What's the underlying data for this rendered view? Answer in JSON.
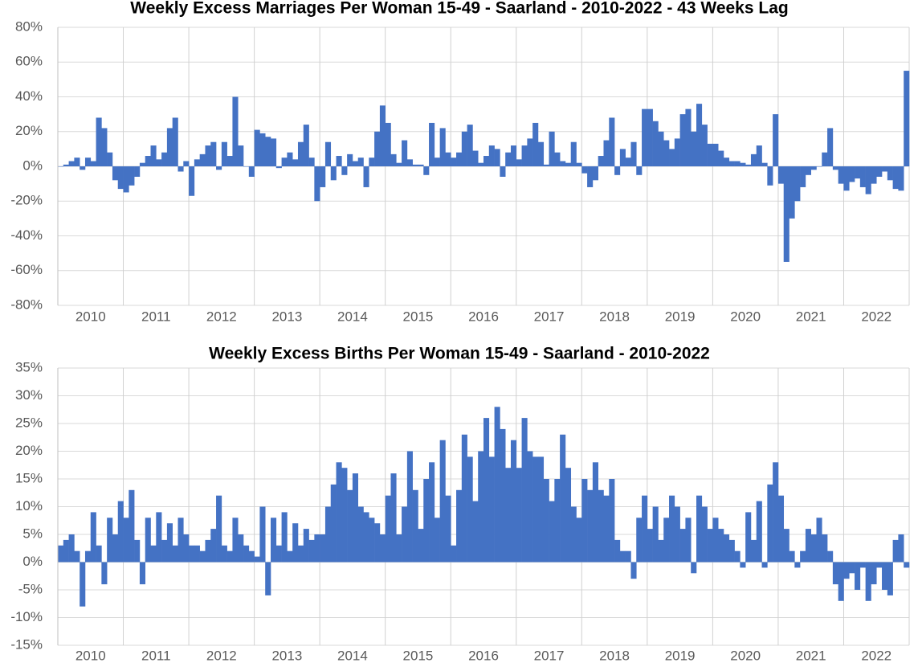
{
  "chart_data": [
    {
      "type": "bar",
      "title": "Weekly Excess Marriages Per Woman 15-49 - Saarland - 2010-2022 - 43 Weeks Lag",
      "color": "#4472c4",
      "grid": true,
      "categories": [
        "2010",
        "2011",
        "2012",
        "2013",
        "2014",
        "2015",
        "2016",
        "2017",
        "2018",
        "2019",
        "2020",
        "2021",
        "2022"
      ],
      "values": [
        [
          0,
          1,
          3,
          5,
          -2,
          5,
          3,
          28,
          22,
          8,
          -8,
          -13
        ],
        [
          -15,
          -11,
          -6,
          2,
          6,
          12,
          4,
          8,
          22,
          28,
          -3,
          3
        ],
        [
          -17,
          4,
          7,
          12,
          14,
          -2,
          14,
          6,
          40,
          12,
          0,
          -6
        ],
        [
          21,
          19,
          17,
          16,
          -1,
          5,
          8,
          4,
          14,
          24,
          5,
          -20
        ],
        [
          -12,
          14,
          -8,
          6,
          -5,
          7,
          3,
          5,
          -12,
          5,
          20,
          35
        ],
        [
          25,
          7,
          2,
          15,
          4,
          1,
          1,
          -5,
          25,
          5,
          22,
          8
        ],
        [
          5,
          8,
          20,
          24,
          9,
          2,
          6,
          12,
          10,
          -6,
          8,
          12
        ],
        [
          4,
          12,
          16,
          25,
          14,
          1,
          20,
          8,
          3,
          2,
          14,
          2
        ],
        [
          -4,
          -12,
          -8,
          6,
          15,
          28,
          -5,
          10,
          5,
          14,
          -5,
          33
        ],
        [
          33,
          26,
          20,
          15,
          10,
          16,
          30,
          33,
          20,
          36,
          24,
          13
        ],
        [
          13,
          9,
          5,
          3,
          3,
          2,
          1,
          7,
          12,
          2,
          -11,
          30
        ],
        [
          -10,
          -55,
          -30,
          -20,
          -12,
          -5,
          -2,
          0,
          8,
          22,
          -2,
          -10
        ],
        [
          -14,
          -9,
          -7,
          -12,
          -16,
          -10,
          -6,
          -3,
          -8,
          -13,
          -14,
          55
        ]
      ],
      "ylim": [
        -80,
        80
      ],
      "yticks": [
        {
          "value": -80,
          "label": "-80%"
        },
        {
          "value": -60,
          "label": "-60%"
        },
        {
          "value": -40,
          "label": "-40%"
        },
        {
          "value": -20,
          "label": "-20%"
        },
        {
          "value": 0,
          "label": "0%"
        },
        {
          "value": 20,
          "label": "20%"
        },
        {
          "value": 40,
          "label": "40%"
        },
        {
          "value": 60,
          "label": "60%"
        },
        {
          "value": 80,
          "label": "80%"
        }
      ]
    },
    {
      "type": "bar",
      "title": "Weekly Excess Births Per Woman 15-49 - Saarland - 2010-2022",
      "color": "#4472c4",
      "grid": true,
      "categories": [
        "2010",
        "2011",
        "2012",
        "2013",
        "2014",
        "2015",
        "2016",
        "2017",
        "2018",
        "2019",
        "2020",
        "2021",
        "2022"
      ],
      "values": [
        [
          3,
          4,
          5,
          2,
          -8,
          2,
          9,
          3,
          -4,
          8,
          5,
          11
        ],
        [
          8,
          13,
          4,
          -4,
          8,
          3,
          9,
          4,
          7,
          3,
          8,
          5
        ],
        [
          3,
          3,
          2,
          4,
          6,
          12,
          3,
          2,
          8,
          5,
          3,
          2
        ],
        [
          1,
          10,
          -6,
          8,
          3,
          9,
          2,
          7,
          3,
          6,
          4,
          5
        ],
        [
          5,
          10,
          14,
          18,
          17,
          13,
          16,
          10,
          9,
          8,
          7,
          5
        ],
        [
          12,
          16,
          5,
          10,
          20,
          13,
          6,
          15,
          18,
          8,
          22,
          12
        ],
        [
          3,
          13,
          23,
          19,
          11,
          20,
          26,
          19,
          28,
          24,
          17,
          22
        ],
        [
          17,
          26,
          20,
          19,
          19,
          15,
          11,
          15,
          23,
          17,
          10,
          8
        ],
        [
          15,
          13,
          18,
          13,
          12,
          15,
          4,
          2,
          2,
          -3,
          8,
          12
        ],
        [
          6,
          10,
          4,
          8,
          12,
          10,
          6,
          8,
          -2,
          12,
          10,
          6
        ],
        [
          8,
          6,
          5,
          4,
          2,
          -1,
          9,
          4,
          11,
          -1,
          14,
          18
        ],
        [
          12,
          6,
          2,
          -1,
          2,
          6,
          5,
          8,
          5,
          2,
          -4,
          -7
        ],
        [
          -3,
          -2,
          -5,
          -1,
          -7,
          -4,
          -1,
          -5,
          -6,
          4,
          5,
          -1
        ]
      ],
      "ylim": [
        -15,
        35
      ],
      "yticks": [
        {
          "value": -15,
          "label": "-15%"
        },
        {
          "value": -10,
          "label": "-10%"
        },
        {
          "value": -5,
          "label": "-5%"
        },
        {
          "value": 0,
          "label": "0%"
        },
        {
          "value": 5,
          "label": "5%"
        },
        {
          "value": 10,
          "label": "10%"
        },
        {
          "value": 15,
          "label": "15%"
        },
        {
          "value": 20,
          "label": "20%"
        },
        {
          "value": 25,
          "label": "25%"
        },
        {
          "value": 30,
          "label": "30%"
        },
        {
          "value": 35,
          "label": "35%"
        }
      ]
    }
  ]
}
